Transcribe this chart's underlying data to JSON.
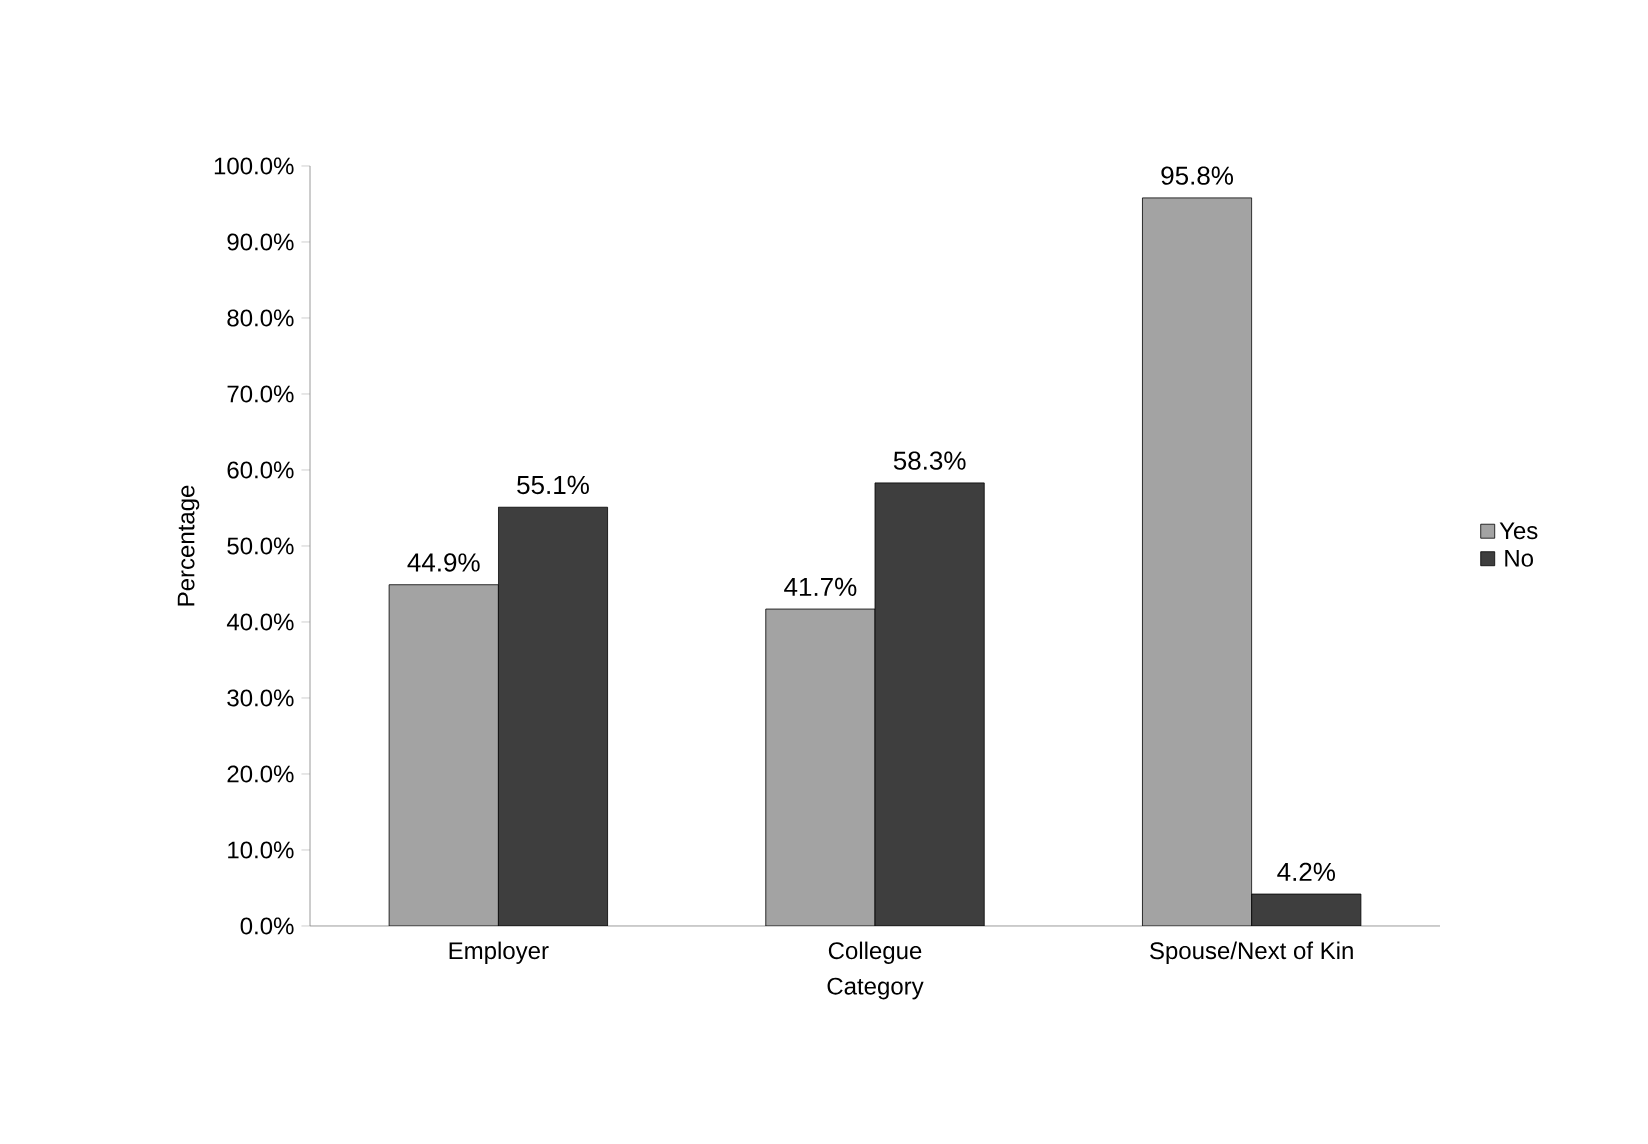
{
  "chart_data": {
    "type": "bar",
    "xlabel": "Category",
    "ylabel": "Percentage",
    "categories": [
      "Employer",
      "Collegue",
      "Spouse/Next of Kin"
    ],
    "series": [
      {
        "name": "Yes",
        "color": "#a3a3a3",
        "values": [
          44.9,
          41.7,
          95.8
        ],
        "value_labels": [
          "44.9%",
          "41.7%",
          "95.8%"
        ]
      },
      {
        "name": "No",
        "color": "#3e3e3e",
        "values": [
          55.1,
          58.3,
          4.2
        ],
        "value_labels": [
          "55.1%",
          "58.3%",
          "4.2%"
        ]
      }
    ],
    "ylim": [
      0,
      100
    ],
    "yticks": [
      {
        "value": 0,
        "label": "0.0%"
      },
      {
        "value": 10,
        "label": "10.0%"
      },
      {
        "value": 20,
        "label": "20.0%"
      },
      {
        "value": 30,
        "label": "30.0%"
      },
      {
        "value": 40,
        "label": "40.0%"
      },
      {
        "value": 50,
        "label": "50.0%"
      },
      {
        "value": 60,
        "label": "60.0%"
      },
      {
        "value": 70,
        "label": "70.0%"
      },
      {
        "value": 80,
        "label": "80.0%"
      },
      {
        "value": 90,
        "label": "90.0%"
      },
      {
        "value": 100,
        "label": "100.0%"
      }
    ],
    "grid": false,
    "legend": "right"
  }
}
